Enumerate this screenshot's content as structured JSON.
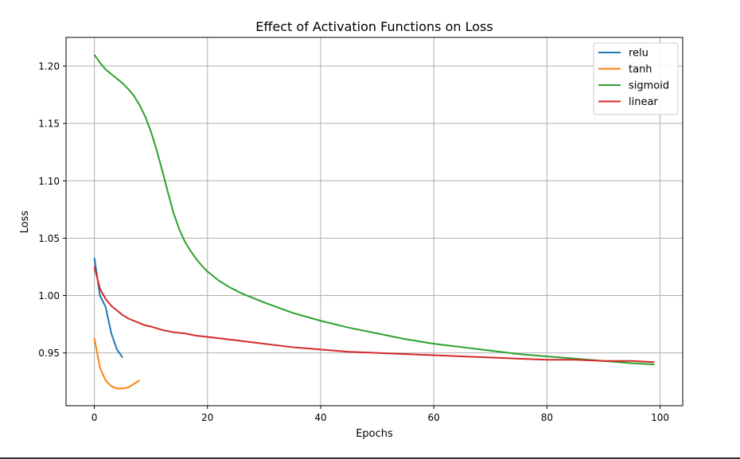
{
  "chart_data": {
    "type": "line",
    "title": "Effect of Activation Functions on Loss",
    "xlabel": "Epochs",
    "ylabel": "Loss",
    "xlim": [
      -5,
      104
    ],
    "ylim": [
      0.904,
      1.225
    ],
    "xticks": [
      0,
      20,
      40,
      60,
      80,
      100
    ],
    "yticks": [
      0.95,
      1.0,
      1.05,
      1.1,
      1.15,
      1.2
    ],
    "ytick_labels": [
      "0.95",
      "1.00",
      "1.05",
      "1.10",
      "1.15",
      "1.20"
    ],
    "grid": true,
    "legend_position": "top-right",
    "series": [
      {
        "name": "relu",
        "color": "#1f77b4",
        "x": [
          0,
          1,
          2,
          3,
          4,
          5
        ],
        "y": [
          1.033,
          1.0,
          0.99,
          0.967,
          0.953,
          0.946
        ]
      },
      {
        "name": "tanh",
        "color": "#ff7f0e",
        "x": [
          0,
          1,
          2,
          3,
          4,
          5,
          6,
          7,
          8
        ],
        "y": [
          0.963,
          0.937,
          0.926,
          0.921,
          0.919,
          0.919,
          0.92,
          0.923,
          0.926
        ]
      },
      {
        "name": "sigmoid",
        "color": "#2ca02c",
        "x": [
          0,
          1,
          2,
          3,
          4,
          5,
          6,
          7,
          8,
          9,
          10,
          11,
          12,
          13,
          14,
          15,
          16,
          17,
          18,
          19,
          20,
          22,
          24,
          26,
          28,
          30,
          35,
          40,
          45,
          50,
          55,
          60,
          65,
          70,
          75,
          80,
          85,
          90,
          95,
          99
        ],
        "y": [
          1.21,
          1.203,
          1.197,
          1.193,
          1.189,
          1.185,
          1.18,
          1.174,
          1.166,
          1.156,
          1.143,
          1.127,
          1.109,
          1.09,
          1.072,
          1.058,
          1.047,
          1.039,
          1.032,
          1.026,
          1.021,
          1.013,
          1.007,
          1.002,
          0.998,
          0.994,
          0.985,
          0.978,
          0.972,
          0.967,
          0.962,
          0.958,
          0.955,
          0.952,
          0.949,
          0.947,
          0.945,
          0.943,
          0.941,
          0.94
        ]
      },
      {
        "name": "linear",
        "color": "#d62728",
        "x": [
          0,
          1,
          2,
          3,
          4,
          5,
          6,
          7,
          8,
          9,
          10,
          12,
          14,
          16,
          18,
          20,
          25,
          30,
          35,
          40,
          45,
          50,
          55,
          60,
          65,
          70,
          75,
          80,
          85,
          90,
          95,
          99
        ],
        "y": [
          1.025,
          1.006,
          0.997,
          0.991,
          0.987,
          0.983,
          0.98,
          0.978,
          0.976,
          0.974,
          0.973,
          0.97,
          0.968,
          0.967,
          0.965,
          0.964,
          0.961,
          0.958,
          0.955,
          0.953,
          0.951,
          0.95,
          0.949,
          0.948,
          0.947,
          0.946,
          0.945,
          0.944,
          0.944,
          0.943,
          0.943,
          0.942
        ]
      }
    ]
  }
}
